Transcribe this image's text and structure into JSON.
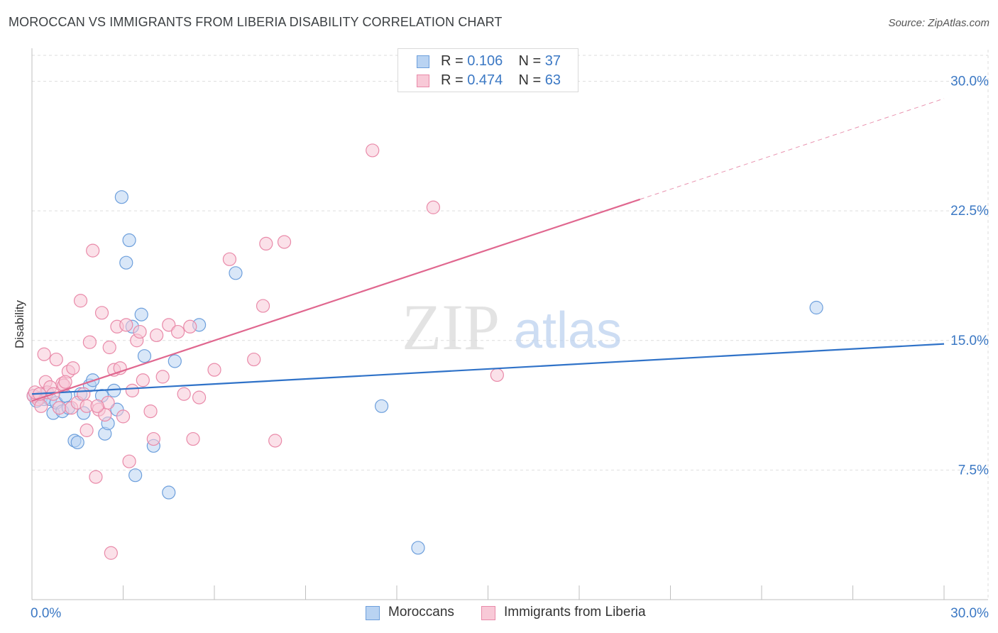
{
  "title": "MOROCCAN VS IMMIGRANTS FROM LIBERIA DISABILITY CORRELATION CHART",
  "source": "Source: ZipAtlas.com",
  "watermark": {
    "zip": "ZIP",
    "atlas": "atlas"
  },
  "legend_top": [
    {
      "r_label": "R = ",
      "r_value": "0.106",
      "n_label": "N = ",
      "n_value": "37"
    },
    {
      "r_label": "R = ",
      "r_value": "0.474",
      "n_label": "N = ",
      "n_value": "63"
    }
  ],
  "legend_bottom": [
    {
      "label": "Moroccans"
    },
    {
      "label": "Immigrants from Liberia"
    }
  ],
  "colors": {
    "blue_fill": "#b9d3f2",
    "blue_stroke": "#6d9fdc",
    "blue_line": "#2f72c8",
    "pink_fill": "#f8c9d7",
    "pink_stroke": "#e98aa9",
    "pink_line": "#e0678f",
    "tick_label": "#3b78c4",
    "grid": "#dedede",
    "axis": "#bfbfbf"
  },
  "chart_data": {
    "type": "scatter",
    "title": "MOROCCAN VS IMMIGRANTS FROM LIBERIA DISABILITY CORRELATION CHART",
    "xlabel": "",
    "ylabel": "Disability",
    "xlim": [
      0,
      30
    ],
    "ylim": [
      0,
      31.5
    ],
    "x_tick_labels": [
      {
        "value": 0,
        "label": "0.0%"
      },
      {
        "value": 30,
        "label": "30.0%"
      }
    ],
    "y_tick_labels": [
      {
        "value": 7.5,
        "label": "7.5%"
      },
      {
        "value": 15,
        "label": "15.0%"
      },
      {
        "value": 22.5,
        "label": "22.5%"
      },
      {
        "value": 30,
        "label": "30.0%"
      }
    ],
    "series": [
      {
        "name": "Moroccans",
        "color": "blue",
        "R": 0.106,
        "N": 37,
        "trend": {
          "x0": 0,
          "y0": 11.9,
          "x1": 30,
          "y1": 14.8,
          "dashed_from": null
        },
        "points": [
          [
            0.05,
            11.8
          ],
          [
            0.3,
            11.7
          ],
          [
            0.4,
            11.6
          ],
          [
            0.5,
            12.0
          ],
          [
            0.6,
            11.6
          ],
          [
            0.7,
            10.8
          ],
          [
            0.8,
            11.4
          ],
          [
            1.0,
            10.9
          ],
          [
            1.1,
            11.8
          ],
          [
            1.2,
            11.1
          ],
          [
            1.4,
            9.2
          ],
          [
            1.5,
            9.1
          ],
          [
            1.6,
            11.9
          ],
          [
            1.7,
            10.8
          ],
          [
            1.9,
            12.4
          ],
          [
            2.0,
            12.7
          ],
          [
            2.3,
            11.8
          ],
          [
            2.4,
            9.6
          ],
          [
            2.5,
            10.2
          ],
          [
            2.7,
            12.1
          ],
          [
            2.8,
            11.0
          ],
          [
            2.95,
            23.3
          ],
          [
            3.1,
            19.5
          ],
          [
            3.2,
            20.8
          ],
          [
            3.3,
            15.8
          ],
          [
            3.4,
            7.2
          ],
          [
            3.6,
            16.5
          ],
          [
            3.7,
            14.1
          ],
          [
            4.0,
            8.9
          ],
          [
            4.5,
            6.2
          ],
          [
            4.7,
            13.8
          ],
          [
            5.5,
            15.9
          ],
          [
            6.7,
            18.9
          ],
          [
            11.5,
            11.2
          ],
          [
            12.7,
            3.0
          ],
          [
            25.8,
            16.9
          ],
          [
            0.15,
            11.5
          ]
        ]
      },
      {
        "name": "Immigrants from Liberia",
        "color": "pink",
        "R": 0.474,
        "N": 63,
        "trend": {
          "x0": 0,
          "y0": 11.5,
          "x1": 30,
          "y1": 29.0,
          "dashed_from": 20.0
        },
        "points": [
          [
            0.05,
            11.8
          ],
          [
            0.2,
            11.6
          ],
          [
            0.3,
            11.2
          ],
          [
            0.4,
            14.2
          ],
          [
            0.45,
            12.6
          ],
          [
            0.5,
            12.0
          ],
          [
            0.6,
            12.3
          ],
          [
            0.7,
            11.9
          ],
          [
            0.8,
            13.9
          ],
          [
            0.9,
            11.1
          ],
          [
            1.0,
            12.5
          ],
          [
            1.05,
            12.4
          ],
          [
            1.2,
            13.2
          ],
          [
            1.3,
            11.1
          ],
          [
            1.35,
            13.4
          ],
          [
            1.5,
            11.4
          ],
          [
            1.6,
            17.3
          ],
          [
            1.7,
            11.9
          ],
          [
            1.8,
            11.2
          ],
          [
            1.8,
            9.8
          ],
          [
            1.9,
            14.9
          ],
          [
            2.0,
            20.2
          ],
          [
            2.1,
            7.1
          ],
          [
            2.2,
            11.0
          ],
          [
            2.3,
            16.6
          ],
          [
            2.4,
            10.7
          ],
          [
            2.5,
            11.4
          ],
          [
            2.55,
            14.6
          ],
          [
            2.6,
            2.7
          ],
          [
            2.7,
            13.3
          ],
          [
            2.8,
            15.8
          ],
          [
            2.9,
            13.4
          ],
          [
            3.0,
            10.6
          ],
          [
            3.1,
            15.9
          ],
          [
            3.2,
            8.0
          ],
          [
            3.3,
            12.1
          ],
          [
            3.45,
            15.0
          ],
          [
            3.55,
            15.5
          ],
          [
            3.65,
            12.7
          ],
          [
            3.9,
            10.9
          ],
          [
            4.0,
            9.3
          ],
          [
            4.1,
            15.3
          ],
          [
            4.3,
            12.9
          ],
          [
            4.5,
            15.9
          ],
          [
            4.8,
            15.5
          ],
          [
            5.0,
            11.9
          ],
          [
            5.2,
            15.8
          ],
          [
            5.3,
            9.3
          ],
          [
            5.5,
            11.7
          ],
          [
            6.0,
            13.3
          ],
          [
            6.5,
            19.7
          ],
          [
            7.3,
            13.9
          ],
          [
            7.6,
            17.0
          ],
          [
            7.7,
            20.6
          ],
          [
            8.0,
            9.2
          ],
          [
            8.3,
            20.7
          ],
          [
            11.2,
            26.0
          ],
          [
            13.2,
            22.7
          ],
          [
            15.3,
            13.0
          ],
          [
            0.1,
            12.0
          ],
          [
            0.25,
            11.9
          ],
          [
            1.1,
            12.6
          ],
          [
            2.15,
            11.2
          ]
        ]
      }
    ],
    "grid": true,
    "legend": "top-center"
  }
}
